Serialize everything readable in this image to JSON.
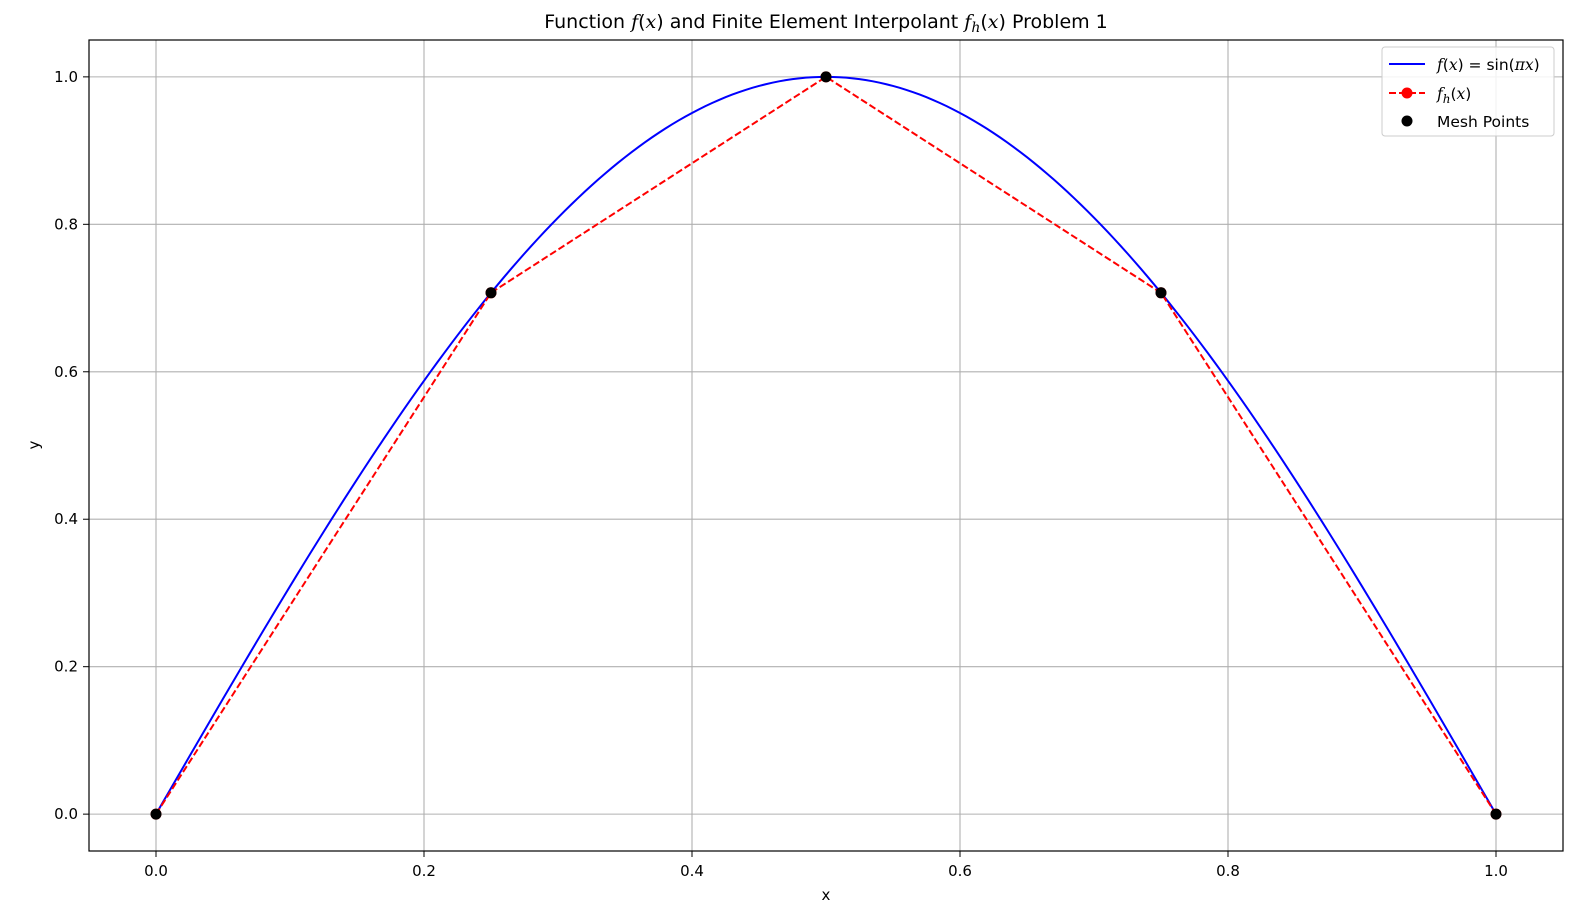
{
  "chart_data": {
    "type": "line",
    "title": "Function f(x) and Finite Element Interpolant f_h(x) Problem 1",
    "title_parts": {
      "pre": "Function ",
      "f1": "f",
      "paren_open1": "(",
      "x1": "x",
      "paren_close1": ")",
      "mid": " and Finite Element Interpolant ",
      "f2": "f",
      "sub": "h",
      "paren_open2": "(",
      "x2": "x",
      "paren_close2": ")",
      "post": " Problem 1"
    },
    "xlabel": "x",
    "ylabel": "y",
    "xlim": [
      -0.05,
      1.05
    ],
    "ylim": [
      -0.05,
      1.05
    ],
    "xticks": [
      0.0,
      0.2,
      0.4,
      0.6,
      0.8,
      1.0
    ],
    "xtick_labels": [
      "0.0",
      "0.2",
      "0.4",
      "0.6",
      "0.8",
      "1.0"
    ],
    "yticks": [
      0.0,
      0.2,
      0.4,
      0.6,
      0.8,
      1.0
    ],
    "ytick_labels": [
      "0.0",
      "0.2",
      "0.4",
      "0.6",
      "0.8",
      "1.0"
    ],
    "grid": true,
    "legend_position": "top-right",
    "series": [
      {
        "name": "f(x) = sin(πx)",
        "style": "solid",
        "color": "#0000ff",
        "function": "sin(pi*x)",
        "domain": [
          0,
          1
        ]
      },
      {
        "name": "f_h(x)",
        "style": "dashed",
        "color": "#ff0000",
        "x": [
          0.0,
          0.25,
          0.5,
          0.75,
          1.0
        ],
        "y": [
          0.0,
          0.7071,
          1.0,
          0.7071,
          0.0
        ]
      },
      {
        "name": "Mesh Points",
        "style": "markers",
        "color": "#000000",
        "x": [
          0.0,
          0.25,
          0.5,
          0.75,
          1.0
        ],
        "y": [
          0.0,
          0.7071,
          1.0,
          0.7071,
          0.0
        ]
      }
    ],
    "legend": {
      "entry1": {
        "f": "f",
        "po": "(",
        "x": "x",
        "pc": ")",
        "eq": " = sin(",
        "pi": "π",
        "x2": "x",
        "end": ")"
      },
      "entry2": {
        "f": "f",
        "sub": "h",
        "po": "(",
        "x": "x",
        "pc": ")"
      },
      "entry3": "Mesh Points"
    }
  }
}
